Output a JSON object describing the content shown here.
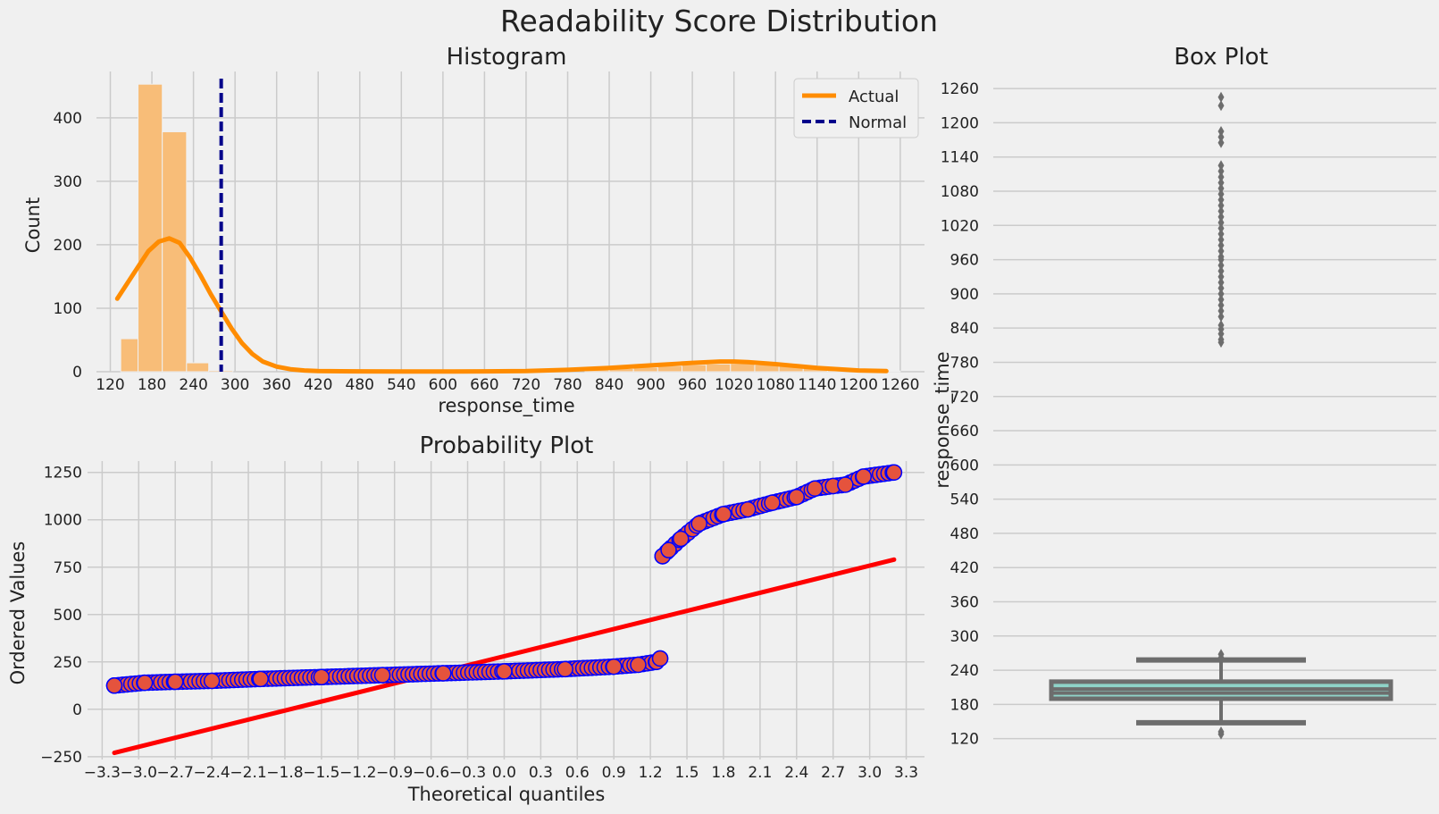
{
  "suptitle": "Readability Score Distribution",
  "colors": {
    "background": "#f0f0f0",
    "grid": "#cbcbcb",
    "hist_bar": "#f8bd78",
    "kde_line": "#ff8c00",
    "normal_line": "#00008b",
    "qq_marker_fill": "#e5533d",
    "qq_marker_edge": "#0000ff",
    "fit_line": "#ff0000",
    "box_fill": "#8fd3c8",
    "box_edge": "#6d6d6d"
  },
  "chart_data": [
    {
      "id": "histogram",
      "type": "bar",
      "title": "Histogram",
      "xlabel": "response_time",
      "ylabel": "Count",
      "xlim": [
        100,
        1295
      ],
      "ylim": [
        0,
        473
      ],
      "xticks": [
        120,
        180,
        240,
        300,
        360,
        420,
        480,
        540,
        600,
        660,
        720,
        780,
        840,
        900,
        960,
        1020,
        1080,
        1140,
        1200,
        1260
      ],
      "yticks": [
        0,
        100,
        200,
        300,
        400
      ],
      "grid": true,
      "legend": {
        "placement": "top-right",
        "entries": [
          {
            "label": "Actual",
            "style": "solid",
            "color": "#ff8c00"
          },
          {
            "label": "Normal",
            "style": "dashed",
            "color": "#00008b"
          }
        ]
      },
      "bins": [
        {
          "x0": 135,
          "x1": 160,
          "count": 52
        },
        {
          "x0": 160,
          "x1": 195,
          "count": 453
        },
        {
          "x0": 195,
          "x1": 230,
          "count": 378
        },
        {
          "x0": 230,
          "x1": 262,
          "count": 14
        },
        {
          "x0": 262,
          "x1": 297,
          "count": 2
        },
        {
          "x0": 805,
          "x1": 840,
          "count": 3
        },
        {
          "x0": 840,
          "x1": 875,
          "count": 5
        },
        {
          "x0": 875,
          "x1": 910,
          "count": 7
        },
        {
          "x0": 910,
          "x1": 945,
          "count": 9
        },
        {
          "x0": 945,
          "x1": 980,
          "count": 11
        },
        {
          "x0": 980,
          "x1": 1015,
          "count": 12
        },
        {
          "x0": 1015,
          "x1": 1050,
          "count": 13
        },
        {
          "x0": 1050,
          "x1": 1085,
          "count": 11
        },
        {
          "x0": 1085,
          "x1": 1120,
          "count": 9
        },
        {
          "x0": 1120,
          "x1": 1155,
          "count": 6
        },
        {
          "x0": 1155,
          "x1": 1190,
          "count": 4
        },
        {
          "x0": 1190,
          "x1": 1225,
          "count": 2
        },
        {
          "x0": 1225,
          "x1": 1260,
          "count": 1
        }
      ],
      "kde": {
        "x": [
          130,
          145,
          160,
          175,
          190,
          205,
          220,
          235,
          250,
          265,
          280,
          295,
          310,
          325,
          340,
          360,
          380,
          400,
          420,
          480,
          540,
          600,
          660,
          720,
          780,
          840,
          900,
          960,
          1000,
          1020,
          1040,
          1080,
          1140,
          1200,
          1240
        ],
        "y": [
          115,
          140,
          165,
          190,
          205,
          210,
          203,
          180,
          152,
          122,
          95,
          68,
          45,
          28,
          16,
          8,
          4,
          2,
          1,
          0.5,
          0.3,
          0.3,
          0.5,
          1,
          3,
          6,
          10,
          14,
          16,
          16,
          15,
          12,
          6,
          2,
          1
        ]
      },
      "normal_line_x": 280
    },
    {
      "id": "probability",
      "type": "scatter",
      "title": "Probability Plot",
      "xlabel": "Theoretical quantiles",
      "ylabel": "Ordered Values",
      "xlim": [
        -3.42,
        3.45
      ],
      "ylim": [
        -265,
        1310
      ],
      "xticks": [
        -3.3,
        -3.0,
        -2.7,
        -2.4,
        -2.1,
        -1.8,
        -1.5,
        -1.2,
        -0.9,
        -0.6,
        -0.3,
        0.0,
        0.3,
        0.6,
        0.9,
        1.2,
        1.5,
        1.8,
        2.1,
        2.4,
        2.7,
        3.0,
        3.3
      ],
      "xtick_labels": [
        "−3.3",
        "−3.0",
        "−2.7",
        "−2.4",
        "−2.1",
        "−1.8",
        "−1.5",
        "−1.2",
        "−0.9",
        "−0.6",
        "−0.3",
        "0.0",
        "0.3",
        "0.6",
        "0.9",
        "1.2",
        "1.5",
        "1.8",
        "2.1",
        "2.4",
        "2.7",
        "3.0",
        "3.3"
      ],
      "yticks": [
        -250,
        0,
        250,
        500,
        750,
        1000,
        1250
      ],
      "ytick_labels": [
        "−250",
        "0",
        "250",
        "500",
        "750",
        "1000",
        "1250"
      ],
      "grid": true,
      "fit_line": {
        "x": [
          -3.2,
          3.2
        ],
        "y": [
          -230,
          790
        ]
      },
      "lower_cluster": {
        "x_range": [
          -3.2,
          1.28
        ],
        "anchors": [
          [
            -3.2,
            125
          ],
          [
            -2.95,
            140
          ],
          [
            -2.7,
            145
          ],
          [
            -2.4,
            150
          ],
          [
            -2.0,
            160
          ],
          [
            -1.5,
            170
          ],
          [
            -1.0,
            180
          ],
          [
            -0.5,
            190
          ],
          [
            0.0,
            200
          ],
          [
            0.5,
            212
          ],
          [
            0.9,
            225
          ],
          [
            1.1,
            235
          ],
          [
            1.25,
            250
          ],
          [
            1.28,
            268
          ]
        ]
      },
      "upper_cluster": {
        "x_range": [
          1.3,
          3.2
        ],
        "anchors": [
          [
            1.3,
            808
          ],
          [
            1.35,
            840
          ],
          [
            1.45,
            900
          ],
          [
            1.6,
            980
          ],
          [
            1.8,
            1030
          ],
          [
            2.0,
            1055
          ],
          [
            2.2,
            1090
          ],
          [
            2.4,
            1120
          ],
          [
            2.55,
            1165
          ],
          [
            2.7,
            1178
          ],
          [
            2.8,
            1185
          ],
          [
            2.95,
            1228
          ],
          [
            3.2,
            1250
          ]
        ]
      }
    },
    {
      "id": "boxplot",
      "type": "box",
      "title": "Box Plot",
      "xlabel": "",
      "ylabel": "response_time",
      "ylim": [
        96,
        1290
      ],
      "yticks": [
        120,
        180,
        240,
        300,
        360,
        420,
        480,
        540,
        600,
        660,
        720,
        780,
        840,
        900,
        960,
        1020,
        1080,
        1140,
        1200,
        1260
      ],
      "grid": true,
      "q1": 190,
      "median": 200,
      "mean": 207,
      "q3": 220,
      "whisker_low": 148,
      "whisker_high": 258,
      "outliers": [
        128,
        132,
        262,
        268,
        815,
        820,
        830,
        838,
        845,
        860,
        870,
        880,
        890,
        900,
        910,
        920,
        930,
        940,
        950,
        960,
        965,
        975,
        985,
        995,
        1005,
        1015,
        1025,
        1035,
        1045,
        1055,
        1065,
        1075,
        1085,
        1095,
        1105,
        1115,
        1125,
        1165,
        1175,
        1185,
        1230,
        1245
      ]
    }
  ]
}
